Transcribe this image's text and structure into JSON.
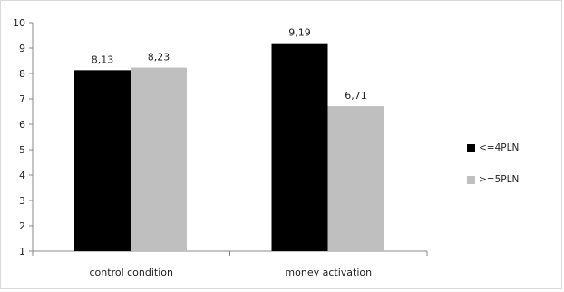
{
  "chart_data": {
    "type": "bar",
    "categories": [
      "control condition",
      "money activation"
    ],
    "series": [
      {
        "name": "<=4PLN",
        "values": [
          8.13,
          9.19
        ],
        "labels": [
          "8,13",
          "9,19"
        ],
        "color": "#000000"
      },
      {
        "name": ">=5PLN",
        "values": [
          8.23,
          6.71
        ],
        "labels": [
          "8,23",
          "6,71"
        ],
        "color": "#bfbfbf"
      }
    ],
    "ylim": [
      1,
      10
    ],
    "yticks": [
      "1",
      "2",
      "3",
      "4",
      "5",
      "6",
      "7",
      "8",
      "9",
      "10"
    ],
    "grid": false,
    "legend_position": "right"
  }
}
